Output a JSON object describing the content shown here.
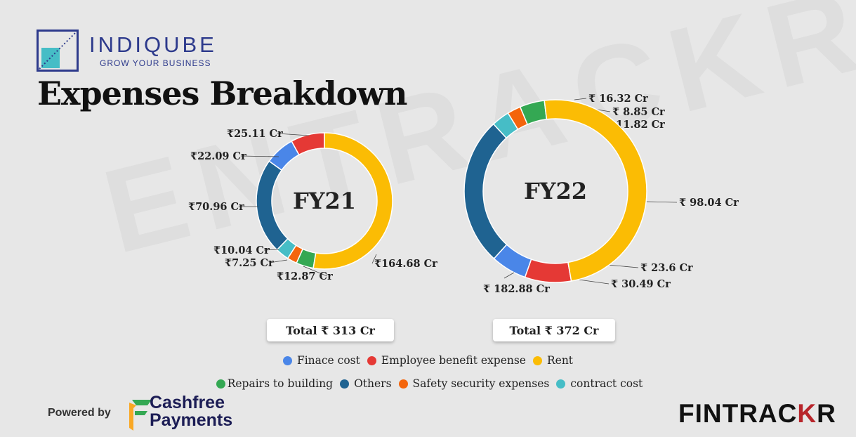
{
  "header": {
    "brand": "INDIQUBE",
    "tagline": "GROW YOUR BUSINESS",
    "title": "Expenses Breakdown"
  },
  "watermark": "ENTRACKR",
  "colors": {
    "finance_cost": "#4a86e8",
    "employee_benefit": "#e53935",
    "rent": "#fbbc04",
    "repairs": "#34a853",
    "others": "#1f6391",
    "safety": "#f4650c",
    "contract": "#46bdc6"
  },
  "chart_data": [
    {
      "type": "pie",
      "center_label": "FY21",
      "total_label": "Total ₹ 313 Cr",
      "slices": [
        {
          "category": "Employee benefit expense",
          "value": 25.11,
          "label": "₹25.11 Cr",
          "color_key": "employee_benefit"
        },
        {
          "category": "Finace cost",
          "value": 22.09,
          "label": "₹22.09 Cr",
          "color_key": "finance_cost"
        },
        {
          "category": "Others",
          "value": 70.96,
          "label": "₹70.96 Cr",
          "color_key": "others"
        },
        {
          "category": "contract cost",
          "value": 10.04,
          "label": "₹10.04 Cr",
          "color_key": "contract"
        },
        {
          "category": "Safety security expenses",
          "value": 7.25,
          "label": "₹7.25 Cr",
          "color_key": "safety"
        },
        {
          "category": "Repairs to building",
          "value": 12.87,
          "label": "₹12.87 Cr",
          "color_key": "repairs"
        },
        {
          "category": "Rent",
          "value": 164.68,
          "label": "₹164.68 Cr",
          "color_key": "rent"
        }
      ]
    },
    {
      "type": "pie",
      "center_label": "FY22",
      "total_label": "Total ₹ 372 Cr",
      "slices": [
        {
          "category": "Repairs to building",
          "value": 16.32,
          "label": "₹ 16.32 Cr",
          "color_key": "repairs"
        },
        {
          "category": "Safety security expenses",
          "value": 8.85,
          "label": "₹ 8.85 Cr",
          "color_key": "safety"
        },
        {
          "category": "contract cost",
          "value": 11.82,
          "label": "₹ 11.82 Cr",
          "color_key": "contract"
        },
        {
          "category": "Others",
          "value": 98.04,
          "label": "₹ 98.04 Cr",
          "color_key": "others"
        },
        {
          "category": "Finace cost",
          "value": 23.6,
          "label": "₹ 23.6 Cr",
          "color_key": "finance_cost"
        },
        {
          "category": "Employee benefit expense",
          "value": 30.49,
          "label": "₹ 30.49 Cr",
          "color_key": "employee_benefit"
        },
        {
          "category": "Rent",
          "value": 182.88,
          "label": "₹ 182.88 Cr",
          "color_key": "rent"
        }
      ]
    }
  ],
  "legend": {
    "row1": [
      {
        "label": "Finace cost",
        "color_key": "finance_cost"
      },
      {
        "label": "Employee benefit expense",
        "color_key": "employee_benefit"
      },
      {
        "label": "Rent",
        "color_key": "rent"
      }
    ],
    "row2": [
      {
        "label": "Repairs to building",
        "color_key": "repairs"
      },
      {
        "label": "Others",
        "color_key": "others"
      },
      {
        "label": "Safety security expenses",
        "color_key": "safety"
      },
      {
        "label": "contract cost",
        "color_key": "contract"
      }
    ]
  },
  "footer": {
    "powered_by": "Powered by",
    "cashfree_line1": "Cashfree",
    "cashfree_line2": "Payments",
    "fintrackr_main": "FINTRAC",
    "fintrackr_accent": "K",
    "fintrackr_end": "R"
  }
}
